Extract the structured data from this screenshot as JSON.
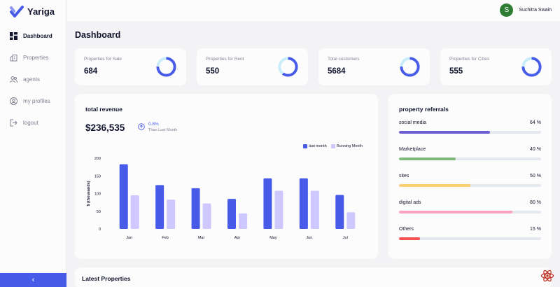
{
  "app": {
    "name": "Yariga"
  },
  "colors": {
    "primary": "#475be8",
    "light": "#cfc8ff",
    "track": "#e4e8ef"
  },
  "nav": {
    "items": [
      {
        "label": "Dashboard",
        "icon": "dashboard-icon",
        "active": true
      },
      {
        "label": "Properties",
        "icon": "building-icon",
        "active": false
      },
      {
        "label": "agents",
        "icon": "people-icon",
        "active": false
      },
      {
        "label": "my profiles",
        "icon": "account-circle-icon",
        "active": false
      },
      {
        "label": "logout",
        "icon": "logout-icon",
        "active": false
      }
    ],
    "collapse_label": "‹"
  },
  "header": {
    "user_initial": "S",
    "user_name": "Suchitra Swain"
  },
  "dashboard": {
    "title": "Dashboard"
  },
  "stats": [
    {
      "label": "Properties for Sale",
      "value": "684",
      "progress": 0.75
    },
    {
      "label": "Properties for Rent",
      "value": "550",
      "progress": 0.6
    },
    {
      "label": "Total customers",
      "value": "5684",
      "progress": 0.75
    },
    {
      "label": "Properties for Cities",
      "value": "555",
      "progress": 0.75
    }
  ],
  "revenue": {
    "title": "total revenue",
    "value": "$236,535",
    "change": "0.8%",
    "change_caption": "Than Last Month"
  },
  "chart_data": {
    "type": "bar",
    "categories": [
      "Jan",
      "Feb",
      "Mar",
      "Apr",
      "May",
      "Jun",
      "Jul"
    ],
    "series": [
      {
        "name": "last month",
        "color": "#475be8",
        "values": [
          183,
          124,
          115,
          85,
          143,
          143,
          96
        ]
      },
      {
        "name": "Running Month",
        "color": "#cfc8ff",
        "values": [
          95,
          83,
          72,
          44,
          108,
          108,
          47
        ]
      }
    ],
    "ylabel": "$ (thousands)",
    "yticks": [
      0,
      50,
      100,
      150,
      200
    ],
    "ylim": [
      0,
      200
    ],
    "legend": "top-right",
    "grid": false
  },
  "referrals": {
    "title": "property referrals",
    "items": [
      {
        "label": "social media",
        "value": "64 %",
        "percent": 64,
        "color": "#6c5dd3"
      },
      {
        "label": "Marketplace",
        "value": "40 %",
        "percent": 40,
        "color": "#7fba7a"
      },
      {
        "label": "sites",
        "value": "50 %",
        "percent": 50,
        "color": "#ffce73"
      },
      {
        "label": "digital ads",
        "value": "80 %",
        "percent": 80,
        "color": "#ffa2c0"
      },
      {
        "label": "Others",
        "value": "15 %",
        "percent": 15,
        "color": "#f45252"
      }
    ]
  },
  "latest": {
    "title": "Latest Properties"
  }
}
